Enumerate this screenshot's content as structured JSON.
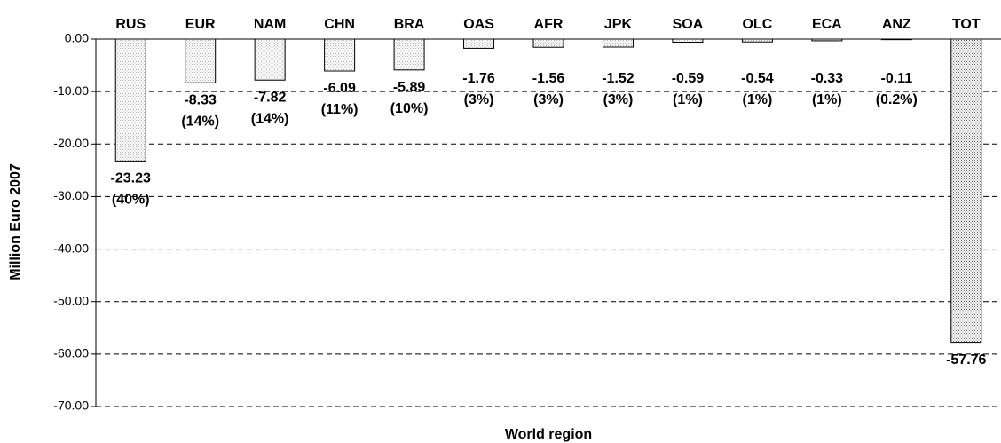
{
  "chart_data": {
    "type": "bar",
    "categories": [
      "RUS",
      "EUR",
      "NAM",
      "CHN",
      "BRA",
      "OAS",
      "AFR",
      "JPK",
      "SOA",
      "OLC",
      "ECA",
      "ANZ",
      "TOT"
    ],
    "values": [
      -23.23,
      -8.33,
      -7.82,
      -6.09,
      -5.89,
      -1.76,
      -1.56,
      -1.52,
      -0.59,
      -0.54,
      -0.33,
      -0.11,
      -57.76
    ],
    "share_labels": [
      "(40%)",
      "(14%)",
      "(14%)",
      "(11%)",
      "(10%)",
      "(3%)",
      "(3%)",
      "(3%)",
      "(1%)",
      "(1%)",
      "(1%)",
      "(0.2%)",
      null
    ],
    "colors": [
      "#b0b0b0",
      "#b0b0b0",
      "#b0b0b0",
      "#b0b0b0",
      "#b0b0b0",
      "#b0b0b0",
      "#b0b0b0",
      "#b0b0b0",
      "#b0b0b0",
      "#b0b0b0",
      "#b0b0b0",
      "#b0b0b0",
      "#606060"
    ],
    "ylim": [
      -70,
      0
    ],
    "yticks": [
      {
        "value": 0,
        "label": "0.00"
      },
      {
        "value": -10,
        "label": "-10.00"
      },
      {
        "value": -20,
        "label": "-20.00"
      },
      {
        "value": -30,
        "label": "-30.00"
      },
      {
        "value": -40,
        "label": "-40.00"
      },
      {
        "value": -50,
        "label": "-50.00"
      },
      {
        "value": -60,
        "label": "-60.00"
      },
      {
        "value": -70,
        "label": "-70.00"
      }
    ],
    "grid": true,
    "ylabel": "Million Euro 2007",
    "xlabel": "World region"
  }
}
